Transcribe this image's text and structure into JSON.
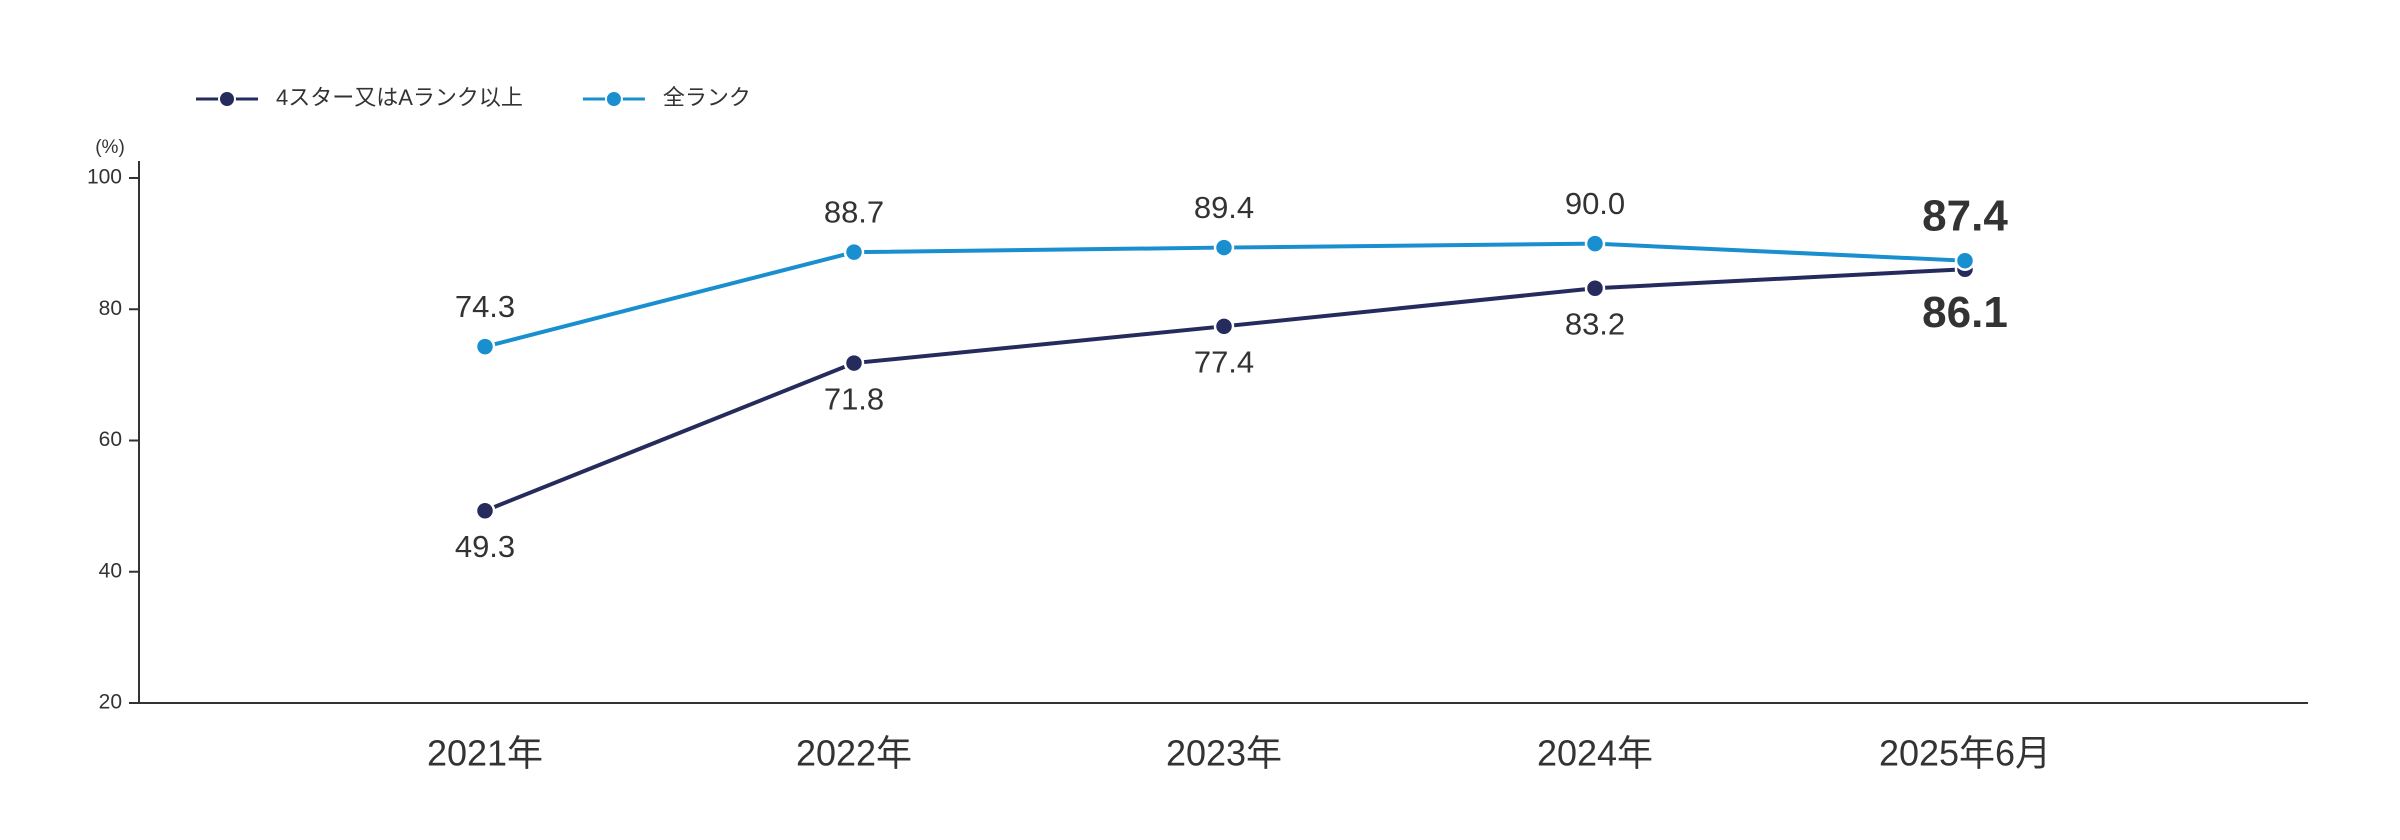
{
  "chart_data": {
    "type": "line",
    "y_unit": "(%)",
    "categories": [
      "2021年",
      "2022年",
      "2023年",
      "2024年",
      "2025年6月"
    ],
    "series": [
      {
        "name": "4スター又はAランク以上",
        "color": "#262b5e",
        "values": [
          49.3,
          71.8,
          77.4,
          83.2,
          86.1
        ],
        "value_labels": [
          "49.3",
          "71.8",
          "77.4",
          "83.2",
          "86.1"
        ]
      },
      {
        "name": "全ランク",
        "color": "#1a8fd0",
        "values": [
          74.3,
          88.7,
          89.4,
          90,
          87.4
        ],
        "value_labels": [
          "74.3",
          "88.7",
          "89.4",
          "90.0",
          "87.4"
        ]
      }
    ],
    "ylim": [
      20,
      100
    ],
    "yticks": [
      20,
      40,
      60,
      80,
      100
    ],
    "legend": "top-left"
  }
}
